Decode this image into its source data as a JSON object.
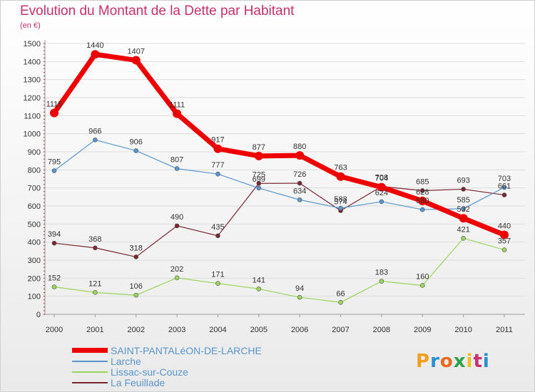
{
  "title": "Evolution du Montant de la Dette par Habitant",
  "unit": "(en €)",
  "logo": {
    "letters": [
      "P",
      "r",
      "o",
      "x",
      "i",
      "t",
      "i"
    ],
    "colors": [
      "#f0a020",
      "#2a8fd0",
      "#e86a1c",
      "#2fa34a",
      "#f0c020",
      "#c83070",
      "#2a8fd0"
    ]
  },
  "chart_data": {
    "type": "line",
    "categories": [
      "2000",
      "2001",
      "2002",
      "2003",
      "2004",
      "2005",
      "2006",
      "2007",
      "2008",
      "2009",
      "2010",
      "2011"
    ],
    "ylim": [
      0,
      1500
    ],
    "yticks": [
      0,
      100,
      200,
      300,
      400,
      500,
      600,
      700,
      800,
      900,
      1000,
      1100,
      1200,
      1300,
      1400,
      1500
    ],
    "grid": true,
    "legend_position": "bottom-left",
    "series": [
      {
        "name": "SAINT-PANTALéON-DE-LARCHE",
        "color": "#ee0000",
        "width": 7,
        "values": [
          1115,
          1440,
          1407,
          1111,
          917,
          877,
          880,
          763,
          704,
          628,
          532,
          440
        ],
        "labels": [
          "1115",
          "1440",
          "1407",
          "1111",
          "917",
          "877",
          "880",
          "763",
          "704",
          "628",
          "532",
          "440"
        ]
      },
      {
        "name": "Larche",
        "color": "#5a96cd",
        "width": 1.2,
        "values": [
          795,
          966,
          906,
          807,
          777,
          699,
          634,
          588,
          624,
          580,
          585,
          703
        ],
        "labels": [
          "795",
          "966",
          "906",
          "807",
          "777",
          "699",
          "634",
          "588",
          "624",
          "580",
          "585",
          "703"
        ]
      },
      {
        "name": "Lissac-sur-Couze",
        "color": "#9bd55c",
        "width": 1.2,
        "values": [
          152,
          121,
          106,
          202,
          171,
          141,
          94,
          66,
          183,
          160,
          421,
          357
        ],
        "labels": [
          "152",
          "121",
          "106",
          "202",
          "171",
          "141",
          "94",
          "66",
          "183",
          "160",
          "421",
          "357"
        ]
      },
      {
        "name": "La Feuillade",
        "color": "#7a2630",
        "width": 1.2,
        "values": [
          394,
          368,
          318,
          490,
          435,
          725,
          726,
          574,
          708,
          685,
          693,
          661
        ],
        "labels": [
          "394",
          "368",
          "318",
          "490",
          "435",
          "725",
          "726",
          "574",
          "708",
          "685",
          "693",
          "661"
        ]
      }
    ]
  }
}
